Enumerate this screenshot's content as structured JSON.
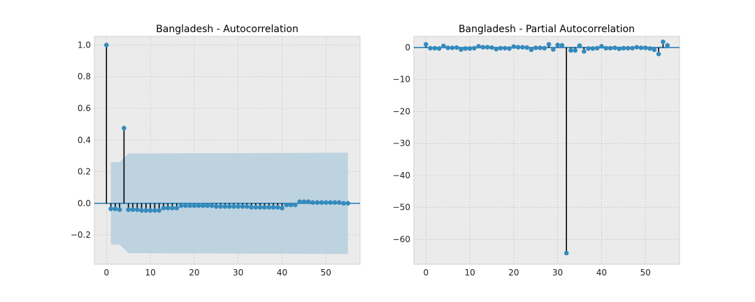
{
  "chart_data": [
    {
      "type": "stem",
      "title": "Bangladesh - Autocorrelation",
      "xlabel": "",
      "ylabel": "",
      "xlim": [
        -2.75,
        57.75
      ],
      "ylim": [
        -0.385,
        1.055
      ],
      "xticks": [
        0,
        10,
        20,
        30,
        40,
        50
      ],
      "yticks": [
        -0.2,
        0.0,
        0.2,
        0.4,
        0.6,
        0.8,
        1.0
      ],
      "ytick_labels": [
        "−0.2",
        "0.0",
        "0.2",
        "0.4",
        "0.6",
        "0.8",
        "1.0"
      ],
      "grid": true,
      "lags": [
        0,
        1,
        2,
        3,
        4,
        5,
        6,
        7,
        8,
        9,
        10,
        11,
        12,
        13,
        14,
        15,
        16,
        17,
        18,
        19,
        20,
        21,
        22,
        23,
        24,
        25,
        26,
        27,
        28,
        29,
        30,
        31,
        32,
        33,
        34,
        35,
        36,
        37,
        38,
        39,
        40,
        41,
        42,
        43,
        44,
        45,
        46,
        47,
        48,
        49,
        50,
        51,
        52,
        53,
        54,
        55
      ],
      "values": [
        1.0,
        -0.035,
        -0.035,
        -0.04,
        0.475,
        -0.04,
        -0.04,
        -0.04,
        -0.045,
        -0.045,
        -0.045,
        -0.045,
        -0.045,
        -0.03,
        -0.03,
        -0.03,
        -0.03,
        -0.015,
        -0.015,
        -0.015,
        -0.015,
        -0.015,
        -0.015,
        -0.015,
        -0.015,
        -0.02,
        -0.02,
        -0.02,
        -0.02,
        -0.02,
        -0.02,
        -0.02,
        -0.02,
        -0.025,
        -0.025,
        -0.025,
        -0.025,
        -0.025,
        -0.025,
        -0.025,
        -0.03,
        -0.01,
        -0.01,
        -0.01,
        0.01,
        0.01,
        0.01,
        0.005,
        0.005,
        0.005,
        0.005,
        0.005,
        0.005,
        0.005,
        0.0,
        0.0
      ],
      "confidence_band": {
        "x": [
          1,
          3,
          5,
          55
        ],
        "upper": [
          0.26,
          0.26,
          0.315,
          0.32
        ],
        "lower": [
          -0.26,
          -0.26,
          -0.315,
          -0.32
        ]
      }
    },
    {
      "type": "stem",
      "title": "Bangladesh - Partial Autocorrelation",
      "xlabel": "",
      "ylabel": "",
      "xlim": [
        -2.75,
        57.75
      ],
      "ylim": [
        -67.8,
        3.5
      ],
      "xticks": [
        0,
        10,
        20,
        30,
        40,
        50
      ],
      "yticks": [
        -60,
        -50,
        -40,
        -30,
        -20,
        -10,
        0
      ],
      "ytick_labels": [
        "−60",
        "−50",
        "−40",
        "−30",
        "−20",
        "−10",
        "0"
      ],
      "grid": true,
      "lags": [
        0,
        1,
        2,
        3,
        4,
        5,
        6,
        7,
        8,
        9,
        10,
        11,
        12,
        13,
        14,
        15,
        16,
        17,
        18,
        19,
        20,
        21,
        22,
        23,
        24,
        25,
        26,
        27,
        28,
        29,
        30,
        31,
        32,
        33,
        34,
        35,
        36,
        37,
        38,
        39,
        40,
        41,
        42,
        43,
        44,
        45,
        46,
        47,
        48,
        49,
        50,
        51,
        52,
        53,
        54,
        55
      ],
      "values": [
        1.0,
        -0.2,
        -0.2,
        -0.3,
        0.5,
        -0.1,
        -0.1,
        0.0,
        -0.6,
        -0.3,
        -0.3,
        -0.2,
        0.4,
        0.1,
        0.1,
        0.0,
        -0.5,
        -0.2,
        -0.2,
        -0.3,
        0.3,
        0.1,
        0.1,
        0.0,
        -0.7,
        -0.1,
        -0.1,
        -0.2,
        1.0,
        -0.6,
        0.8,
        0.7,
        -64.3,
        -0.9,
        -0.9,
        0.6,
        -1.2,
        -0.3,
        -0.3,
        -0.2,
        0.4,
        -0.2,
        -0.2,
        -0.1,
        -0.4,
        -0.2,
        -0.2,
        -0.2,
        0.1,
        -0.1,
        -0.1,
        -0.3,
        -0.7,
        -2.0,
        1.8,
        0.7
      ],
      "confidence_band": {
        "x": [
          1,
          55
        ],
        "upper": [
          0.26,
          0.32
        ],
        "lower": [
          -0.26,
          -0.32
        ]
      }
    }
  ]
}
